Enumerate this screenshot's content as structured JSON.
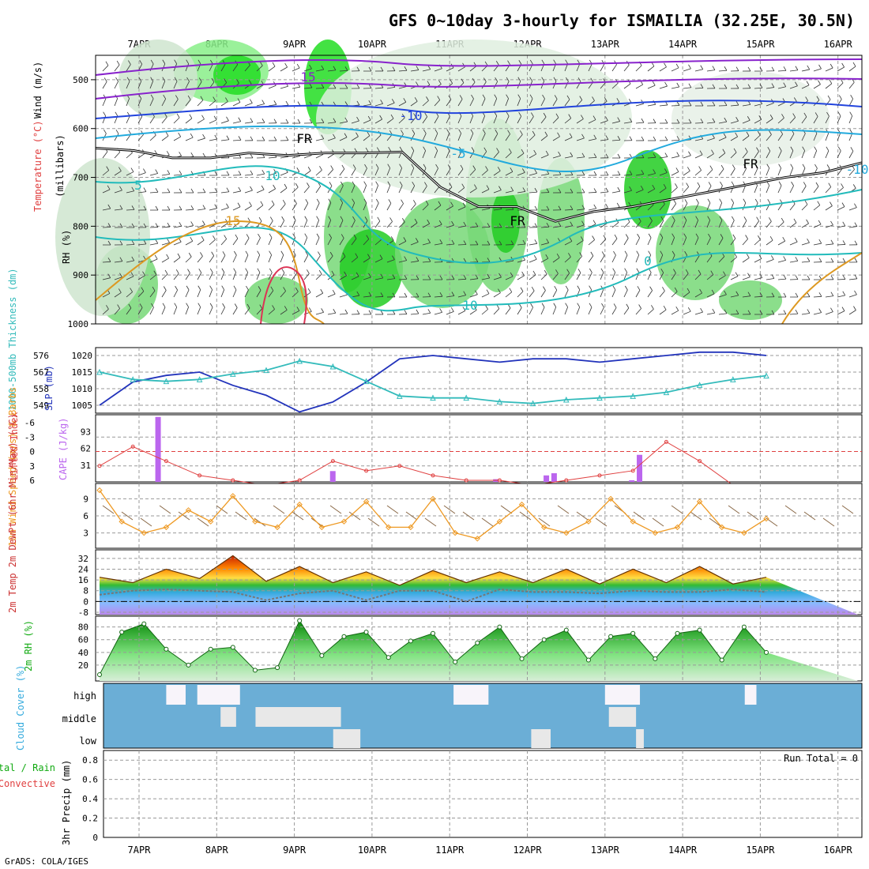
{
  "title": "GFS 0~10day 3-hourly for ISMAILIA (32.25E, 30.5N)",
  "credit": "GrADS: COLA/IGES",
  "dates": [
    "7APR",
    "8APR",
    "9APR",
    "10APR",
    "11APR",
    "12APR",
    "13APR",
    "14APR",
    "15APR",
    "16APR"
  ],
  "chart_data": [
    {
      "type": "heatmap",
      "panel": "cross-section",
      "ylabel_parts": [
        "RH (%)",
        "Temperature (°C)",
        "Wind (m/s)",
        "(millibars)"
      ],
      "yticks": [
        500,
        600,
        700,
        800,
        900,
        1000
      ],
      "ylim": [
        1000,
        450
      ],
      "contour_labels": [
        "15",
        "-10",
        "FR",
        "5",
        "-5",
        "10",
        "FR",
        "FR",
        "15",
        "0",
        "10",
        "-10"
      ],
      "freezing_level_mb": [
        640,
        645,
        660,
        660,
        650,
        655,
        650,
        650,
        648,
        720,
        760,
        760,
        790,
        770,
        760,
        745,
        730,
        715,
        700,
        690,
        670
      ]
    },
    {
      "type": "line",
      "panel": "pressure-thickness",
      "ylabel_left": "1000-500mb Thickness (dm)",
      "ylabel_right": "SLP (mb)",
      "yticks_left": [
        549,
        558,
        567,
        576
      ],
      "yticks_right": [
        1005,
        1010,
        1015,
        1020
      ],
      "series": [
        {
          "name": "SLP (mb)",
          "color": "#2233bb",
          "values": [
            1005,
            1012,
            1014,
            1015,
            1011,
            1008,
            1003,
            1006,
            1012,
            1019,
            1020,
            1019,
            1018,
            1019,
            1019,
            1018,
            1019,
            1020,
            1021,
            1021,
            1020
          ]
        },
        {
          "name": "1000-500mb Thickness (dm)",
          "color": "#33bbbb",
          "values": [
            567,
            563,
            562,
            563,
            566,
            568,
            573,
            570,
            562,
            554,
            553,
            553,
            551,
            550,
            552,
            553,
            554,
            556,
            560,
            563,
            565
          ]
        }
      ]
    },
    {
      "type": "bar",
      "panel": "instability",
      "ylabel_left": "Lifted Index",
      "ylabel_right": "CAPE (J/kg)",
      "yticks_left": [
        -6,
        -3,
        0,
        3,
        6
      ],
      "yticks_right": [
        31,
        62,
        93
      ],
      "cape_bars": [
        {
          "day": 0.25,
          "value": 120
        },
        {
          "day": 2.5,
          "value": 20
        },
        {
          "day": 4.6,
          "value": 5
        },
        {
          "day": 5.25,
          "value": 12
        },
        {
          "day": 5.35,
          "value": 16
        },
        {
          "day": 6.35,
          "value": 3
        },
        {
          "day": 6.45,
          "value": 50
        }
      ],
      "lifted_index": [
        3,
        -1,
        2,
        5,
        6,
        7,
        6,
        2,
        4,
        3,
        5,
        6,
        6,
        7,
        6,
        5,
        4,
        -2,
        2,
        7,
        8
      ]
    },
    {
      "type": "line",
      "panel": "wind",
      "ylabel": "10m Wind Speed (m/s) & Barbs",
      "yticks": [
        3,
        6,
        9
      ],
      "series": [
        {
          "name": "Speed",
          "color": "#ee9922",
          "values": [
            10.5,
            5,
            3,
            4,
            7,
            5,
            9.5,
            5,
            4,
            8,
            4,
            5,
            8.5,
            4,
            4,
            9,
            3,
            2,
            5,
            8,
            4,
            3,
            5,
            9,
            5,
            3,
            4,
            8.5,
            4,
            3,
            5.5
          ]
        }
      ]
    },
    {
      "type": "area",
      "panel": "temperature",
      "ylabel": "2m Temp 2m DewPt (6hr Min/Max) (°C)",
      "yticks": [
        -8,
        0,
        8,
        16,
        24,
        32
      ],
      "series": [
        {
          "name": "2m Temp",
          "values": [
            18,
            14,
            24,
            17,
            34,
            15,
            26,
            14,
            22,
            12,
            23,
            14,
            22,
            14,
            24,
            13,
            24,
            14,
            26,
            13,
            18
          ]
        },
        {
          "name": "2m DewPt",
          "values": [
            5,
            8,
            9,
            8,
            7,
            1,
            6,
            8,
            1,
            8,
            8,
            0,
            9,
            7,
            7,
            6,
            8,
            7,
            7,
            9,
            7
          ]
        }
      ]
    },
    {
      "type": "area",
      "panel": "humidity",
      "ylabel": "2m RH (%)",
      "yticks": [
        20,
        40,
        60,
        80
      ],
      "series": [
        {
          "name": "2m RH",
          "color": "#11aa11",
          "values": [
            5,
            72,
            85,
            45,
            20,
            45,
            48,
            12,
            16,
            90,
            35,
            65,
            72,
            32,
            58,
            70,
            25,
            55,
            80,
            30,
            60,
            75,
            28,
            65,
            70,
            30,
            70,
            75,
            28,
            80,
            40
          ]
        }
      ]
    },
    {
      "type": "heatmap",
      "panel": "clouds",
      "ylabel": "Cloud Cover (%)",
      "layers": [
        "high",
        "middle",
        "low"
      ],
      "clear_blocks": [
        {
          "layer": "high",
          "from": 0.35,
          "to": 0.6
        },
        {
          "layer": "high",
          "from": 0.75,
          "to": 1.3
        },
        {
          "layer": "high",
          "from": 1.0,
          "to": 1.25
        },
        {
          "layer": "high",
          "from": 4.05,
          "to": 4.5
        },
        {
          "layer": "high",
          "from": 6.0,
          "to": 6.45
        },
        {
          "layer": "high",
          "from": 7.8,
          "to": 7.95
        },
        {
          "layer": "middle",
          "from": 1.05,
          "to": 1.25
        },
        {
          "layer": "middle",
          "from": 1.5,
          "to": 2.6
        },
        {
          "layer": "middle",
          "from": 6.05,
          "to": 6.4
        },
        {
          "layer": "low",
          "from": 2.5,
          "to": 2.85
        },
        {
          "layer": "low",
          "from": 5.05,
          "to": 5.3
        },
        {
          "layer": "low",
          "from": 6.4,
          "to": 6.5
        }
      ]
    },
    {
      "type": "bar",
      "panel": "precipitation",
      "ylabel": "3hr Precip (mm)",
      "legend_left": [
        "Total / Rain",
        "Convective"
      ],
      "yticks": [
        0,
        0.2,
        0.4,
        0.6,
        0.8
      ],
      "ylim": [
        0,
        0.9
      ],
      "run_total": "Run Total = 0",
      "values": []
    }
  ]
}
